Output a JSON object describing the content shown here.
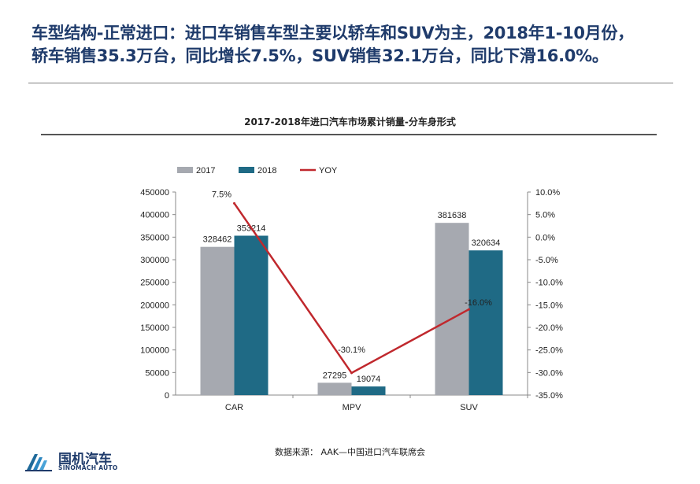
{
  "headline": {
    "line1": "车型结构-正常进口：进口车销售车型主要以轿车和SUV为主，2018年1-10月份，",
    "line2": "轿车销售35.3万台，同比增长7.5%，SUV销售32.1万台，同比下滑16.0%。"
  },
  "chart_data": {
    "type": "bar",
    "title": "2017-2018年进口汽车市场累计销量-分车身形式",
    "categories": [
      "CAR",
      "MPV",
      "SUV"
    ],
    "series": [
      {
        "name": "2017",
        "type": "bar",
        "axis": "left",
        "color": "#a6a9b0",
        "values": [
          328462,
          27295,
          381638
        ],
        "labels": [
          "328462",
          "27295",
          "381638"
        ]
      },
      {
        "name": "2018",
        "type": "bar",
        "axis": "left",
        "color": "#1f6a85",
        "values": [
          353214,
          19074,
          320634
        ],
        "labels": [
          "353214",
          "19074",
          "320634"
        ]
      },
      {
        "name": "YOY",
        "type": "line",
        "axis": "right",
        "color": "#c0282d",
        "values": [
          7.5,
          -30.1,
          -16.0
        ],
        "labels": [
          "7.5%",
          "-30.1%",
          "-16.0%"
        ]
      }
    ],
    "y_left": {
      "min": 0,
      "max": 450000,
      "step": 50000,
      "ticks": [
        "0",
        "50000",
        "100000",
        "150000",
        "200000",
        "250000",
        "300000",
        "350000",
        "400000",
        "450000"
      ]
    },
    "y_right": {
      "min": -35,
      "max": 10,
      "step": 5,
      "ticks": [
        "-35.0%",
        "-30.0%",
        "-25.0%",
        "-20.0%",
        "-15.0%",
        "-10.0%",
        "-5.0%",
        "0.0%",
        "5.0%",
        "10.0%"
      ]
    },
    "legend_position": "top-left",
    "grid": false
  },
  "source": "数据来源： AAK—中国进口汽车联席会",
  "logo": {
    "name_cn": "国机汽车",
    "name_en": "SINOMACH AUTO"
  }
}
